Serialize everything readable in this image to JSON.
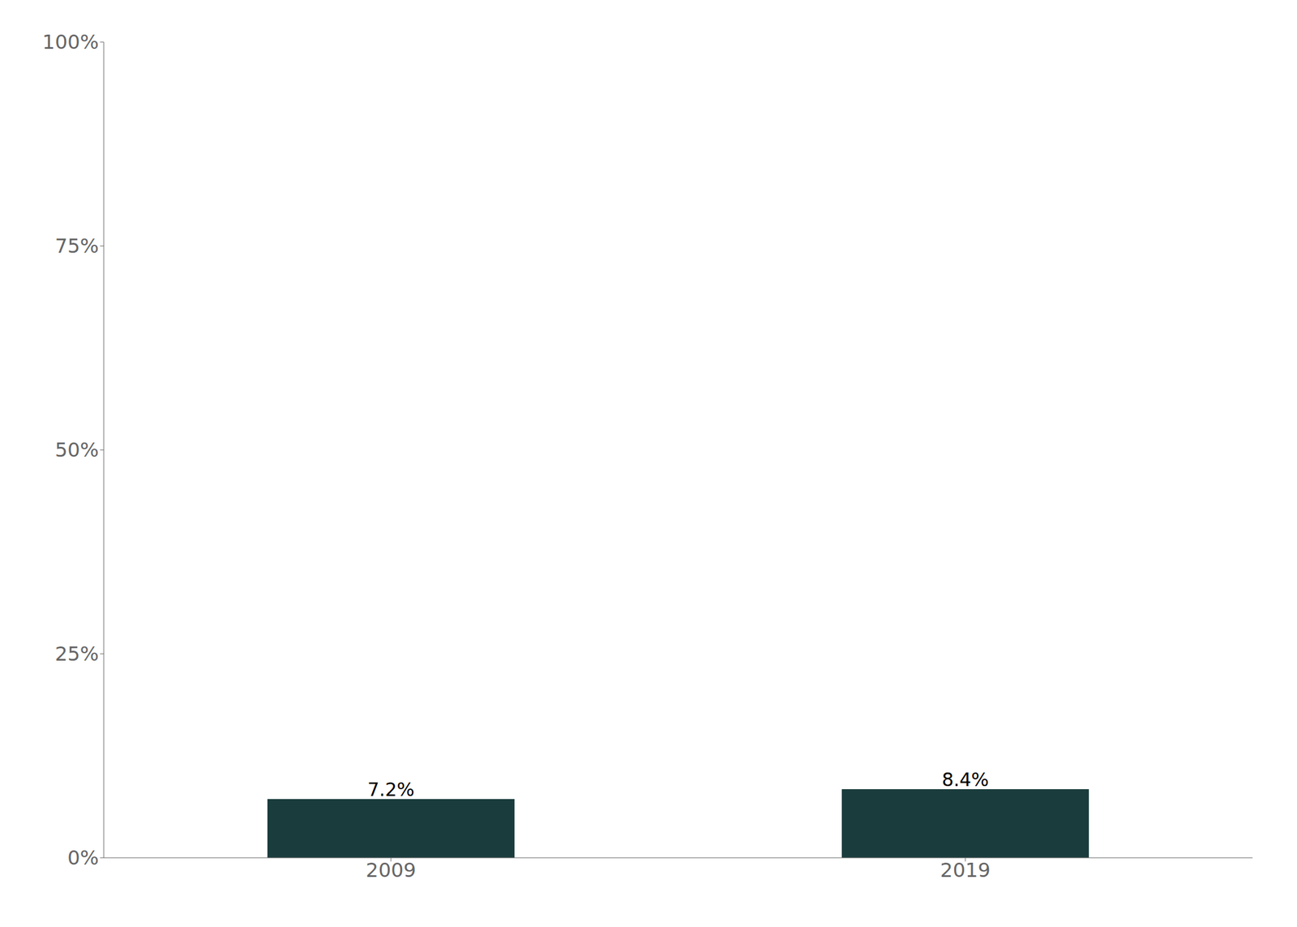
{
  "chart_data": {
    "type": "bar",
    "categories": [
      "2009",
      "2019"
    ],
    "values": [
      7.2,
      8.4
    ],
    "value_labels": [
      "7.2%",
      "8.4%"
    ],
    "data_labels": true,
    "color": "#1a3c3c",
    "ylim": [
      0,
      100
    ],
    "yticks": [
      {
        "value": 0,
        "label": "0%"
      },
      {
        "value": 25,
        "label": "25%"
      },
      {
        "value": 50,
        "label": "50%"
      },
      {
        "value": 75,
        "label": "75%"
      },
      {
        "value": 100,
        "label": "100%"
      }
    ],
    "grid": false
  }
}
